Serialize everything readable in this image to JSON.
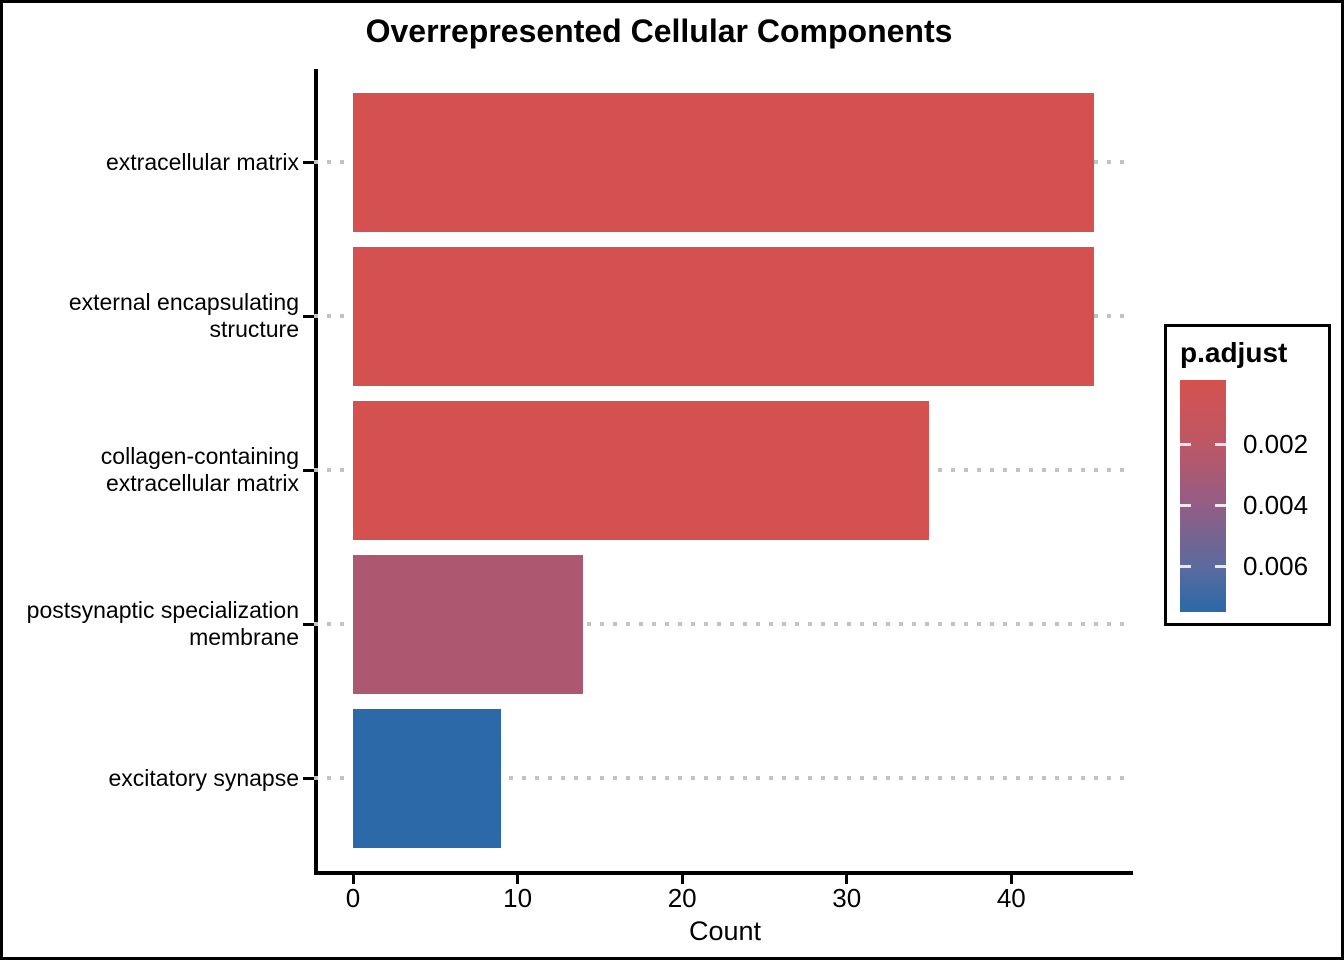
{
  "chart_data": {
    "type": "bar",
    "orientation": "horizontal",
    "title": "Overrepresented Cellular Components",
    "xlabel": "Count",
    "categories": [
      "extracellular matrix",
      "external encapsulating structure",
      "collagen-containing extracellular matrix",
      "postsynaptic specialization membrane",
      "excitatory synapse"
    ],
    "label_lines": [
      [
        "extracellular matrix"
      ],
      [
        "external encapsulating",
        "structure"
      ],
      [
        "collagen-containing",
        "extracellular matrix"
      ],
      [
        "postsynaptic specialization",
        "membrane"
      ],
      [
        "excitatory synapse"
      ]
    ],
    "values": [
      45,
      45,
      35,
      14,
      9
    ],
    "bar_colors": [
      "#d5514f",
      "#d5514f",
      "#d5514f",
      "#ab5870",
      "#2b69a8"
    ],
    "x_ticks": [
      0,
      10,
      20,
      30,
      40
    ],
    "xlim": [
      -2.25,
      47.25
    ],
    "grid": "dotted horizontal gridline at each category",
    "legend": {
      "title": "p.adjust",
      "position": "right",
      "type": "colorbar-gradient",
      "tick_labels": [
        "0.002",
        "0.004",
        "0.006"
      ],
      "low_color": "#d5514f",
      "mid_color": "#935d85",
      "high_color": "#2b69a8"
    }
  }
}
